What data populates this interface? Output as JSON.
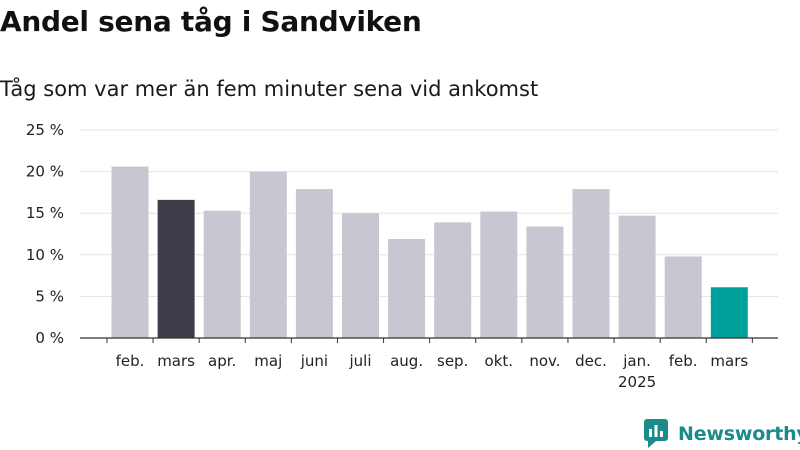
{
  "title": "Andel sena tåg i Sandviken",
  "subtitle": "Tåg som var mer än fem minuter sena vid ankomst",
  "brand": "Newsworthy",
  "colors": {
    "bar_default": "#c8c6d0",
    "bar_highlight_previous": "#3e3d4a",
    "bar_highlight_current": "#00a19a",
    "grid": "#e3e3e3",
    "axis": "#333333",
    "brand": "#1b8a8a"
  },
  "chart_data": {
    "type": "bar",
    "categories": [
      "feb.",
      "mars",
      "apr.",
      "maj",
      "juni",
      "juli",
      "aug.",
      "sep.",
      "okt.",
      "nov.",
      "dec.",
      "jan.",
      "feb.",
      "mars"
    ],
    "year_labels": [
      "",
      "",
      "",
      "",
      "",
      "",
      "",
      "",
      "",
      "",
      "",
      "2025",
      "",
      ""
    ],
    "values": [
      20.6,
      16.6,
      15.3,
      20.0,
      17.9,
      15.0,
      11.9,
      13.9,
      15.2,
      13.4,
      17.9,
      14.7,
      9.8,
      6.1
    ],
    "highlight": [
      "default",
      "previous",
      "default",
      "default",
      "default",
      "default",
      "default",
      "default",
      "default",
      "default",
      "default",
      "default",
      "default",
      "current"
    ],
    "ylim": [
      0,
      25
    ],
    "yticks": [
      0,
      5,
      10,
      15,
      20,
      25
    ],
    "ytick_labels": [
      "0 %",
      "5 %",
      "10 %",
      "15 %",
      "20 %",
      "25 %"
    ],
    "xlabel": "",
    "ylabel": "",
    "grid": true
  }
}
